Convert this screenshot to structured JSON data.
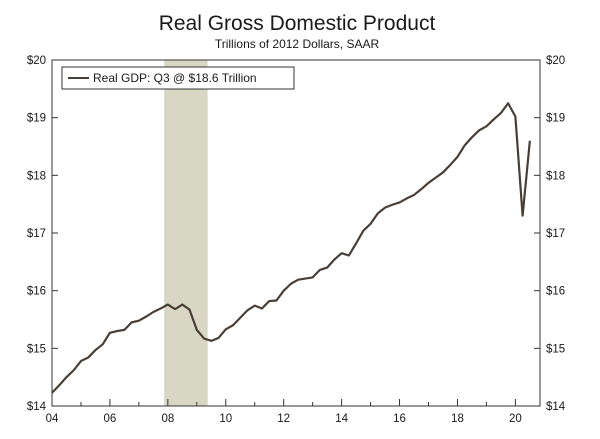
{
  "chart_data": {
    "type": "line",
    "title": "Real Gross Domestic Product",
    "subtitle": "Trillions of 2012 Dollars, SAAR",
    "xlabel": "",
    "ylabel": "",
    "xlim": [
      2004.0,
      2020.85
    ],
    "ylim": [
      14,
      20
    ],
    "y_ticks": [
      14,
      15,
      16,
      17,
      18,
      19,
      20
    ],
    "y_tick_labels": [
      "$14",
      "$15",
      "$16",
      "$17",
      "$18",
      "$19",
      "$20"
    ],
    "x_ticks": [
      2004,
      2006,
      2008,
      2010,
      2012,
      2014,
      2016,
      2018,
      2020
    ],
    "x_tick_labels": [
      "04",
      "06",
      "08",
      "10",
      "12",
      "14",
      "16",
      "18",
      "20"
    ],
    "recession": {
      "start": 2007.875,
      "end": 2009.375
    },
    "legend": "Real GDP: Q3 @ $18.6 Trillion",
    "legend_position": "top-left",
    "grid": false,
    "series": [
      {
        "name": "Real GDP",
        "color": "#4a3f36",
        "x": [
          2004.0,
          2004.25,
          2004.5,
          2004.75,
          2005.0,
          2005.25,
          2005.5,
          2005.75,
          2006.0,
          2006.25,
          2006.5,
          2006.75,
          2007.0,
          2007.25,
          2007.5,
          2007.75,
          2008.0,
          2008.25,
          2008.5,
          2008.75,
          2009.0,
          2009.25,
          2009.5,
          2009.75,
          2010.0,
          2010.25,
          2010.5,
          2010.75,
          2011.0,
          2011.25,
          2011.5,
          2011.75,
          2012.0,
          2012.25,
          2012.5,
          2012.75,
          2013.0,
          2013.25,
          2013.5,
          2013.75,
          2014.0,
          2014.25,
          2014.5,
          2014.75,
          2015.0,
          2015.25,
          2015.5,
          2015.75,
          2016.0,
          2016.25,
          2016.5,
          2016.75,
          2017.0,
          2017.25,
          2017.5,
          2017.75,
          2018.0,
          2018.25,
          2018.5,
          2018.75,
          2019.0,
          2019.25,
          2019.5,
          2019.75,
          2020.0,
          2020.25,
          2020.5
        ],
        "values": [
          14.23,
          14.36,
          14.5,
          14.62,
          14.78,
          14.84,
          14.97,
          15.07,
          15.27,
          15.3,
          15.32,
          15.45,
          15.48,
          15.55,
          15.63,
          15.69,
          15.76,
          15.68,
          15.76,
          15.67,
          15.32,
          15.17,
          15.13,
          15.18,
          15.33,
          15.4,
          15.53,
          15.66,
          15.74,
          15.69,
          15.82,
          15.83,
          16.0,
          16.12,
          16.19,
          16.21,
          16.23,
          16.36,
          16.4,
          16.54,
          16.65,
          16.61,
          16.82,
          17.04,
          17.16,
          17.34,
          17.44,
          17.49,
          17.53,
          17.6,
          17.66,
          17.76,
          17.87,
          17.96,
          18.05,
          18.18,
          18.32,
          18.52,
          18.66,
          18.78,
          18.85,
          18.97,
          19.08,
          19.25,
          19.02,
          17.3,
          18.6
        ]
      }
    ]
  }
}
